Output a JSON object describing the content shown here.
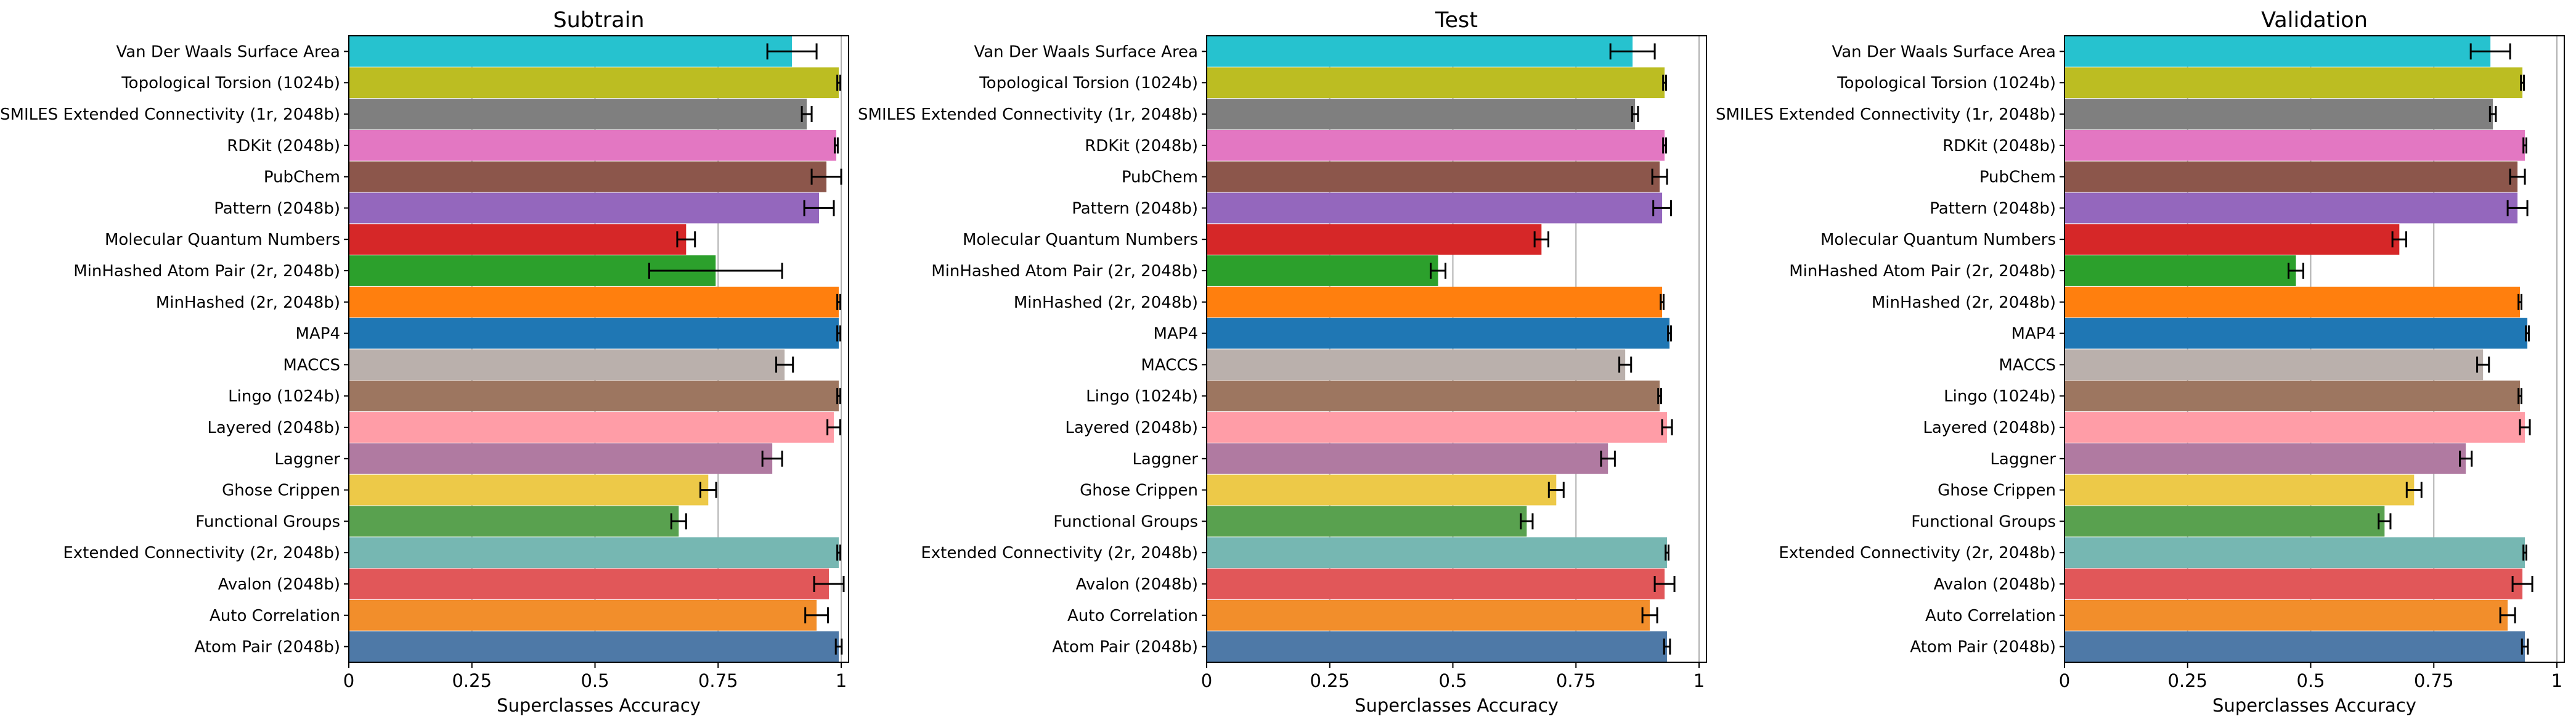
{
  "chart_data": {
    "type": "bar",
    "orientation": "horizontal",
    "xlabel": "Superclasses Accuracy",
    "xlim": [
      0,
      1.0
    ],
    "xticks": [
      0,
      0.25,
      0.5,
      0.75,
      1
    ],
    "xtick_labels": [
      "0",
      "0.25",
      "0.5",
      "0.75",
      "1"
    ],
    "grid": "vertical",
    "categories": [
      "Van Der Waals Surface Area",
      "Topological Torsion (1024b)",
      "SMILES Extended Connectivity (1r, 2048b)",
      "RDKit (2048b)",
      "PubChem",
      "Pattern (2048b)",
      "Molecular Quantum Numbers",
      "MinHashed Atom Pair (2r, 2048b)",
      "MinHashed (2r, 2048b)",
      "MAP4",
      "MACCS",
      "Lingo (1024b)",
      "Layered (2048b)",
      "Laggner",
      "Ghose Crippen",
      "Functional Groups",
      "Extended Connectivity (2r, 2048b)",
      "Avalon (2048b)",
      "Auto Correlation",
      "Atom Pair (2048b)"
    ],
    "colors": [
      "#26c2cf",
      "#bcbd22",
      "#7f7f7f",
      "#e377c2",
      "#8c564b",
      "#9467bd",
      "#d62728",
      "#2ca02c",
      "#ff7f0e",
      "#1f77b4",
      "#bab0ac",
      "#9d7660",
      "#ff9da7",
      "#b07aa1",
      "#edc948",
      "#59a14f",
      "#76b7b2",
      "#e15759",
      "#f28e2b",
      "#4e79a7"
    ],
    "panels": [
      {
        "title": "Subtrain",
        "values": [
          0.9,
          0.995,
          0.93,
          0.99,
          0.97,
          0.955,
          0.685,
          0.745,
          0.995,
          0.995,
          0.885,
          0.995,
          0.985,
          0.86,
          0.73,
          0.67,
          0.995,
          0.975,
          0.95,
          0.995
        ],
        "errors": [
          0.05,
          0.003,
          0.01,
          0.003,
          0.03,
          0.03,
          0.018,
          0.135,
          0.003,
          0.003,
          0.017,
          0.003,
          0.013,
          0.02,
          0.016,
          0.015,
          0.003,
          0.03,
          0.023,
          0.006
        ]
      },
      {
        "title": "Test",
        "values": [
          0.865,
          0.93,
          0.87,
          0.93,
          0.92,
          0.925,
          0.68,
          0.47,
          0.925,
          0.94,
          0.85,
          0.92,
          0.935,
          0.815,
          0.71,
          0.65,
          0.935,
          0.93,
          0.9,
          0.935
        ],
        "errors": [
          0.045,
          0.003,
          0.006,
          0.003,
          0.015,
          0.018,
          0.014,
          0.015,
          0.003,
          0.003,
          0.012,
          0.003,
          0.01,
          0.014,
          0.015,
          0.012,
          0.003,
          0.02,
          0.015,
          0.006
        ]
      },
      {
        "title": "Validation",
        "values": [
          0.865,
          0.93,
          0.87,
          0.935,
          0.92,
          0.92,
          0.68,
          0.47,
          0.925,
          0.94,
          0.85,
          0.925,
          0.935,
          0.815,
          0.71,
          0.65,
          0.935,
          0.93,
          0.9,
          0.935
        ],
        "errors": [
          0.04,
          0.003,
          0.006,
          0.003,
          0.015,
          0.02,
          0.014,
          0.015,
          0.003,
          0.003,
          0.012,
          0.003,
          0.01,
          0.012,
          0.015,
          0.012,
          0.003,
          0.02,
          0.015,
          0.006
        ]
      }
    ]
  }
}
